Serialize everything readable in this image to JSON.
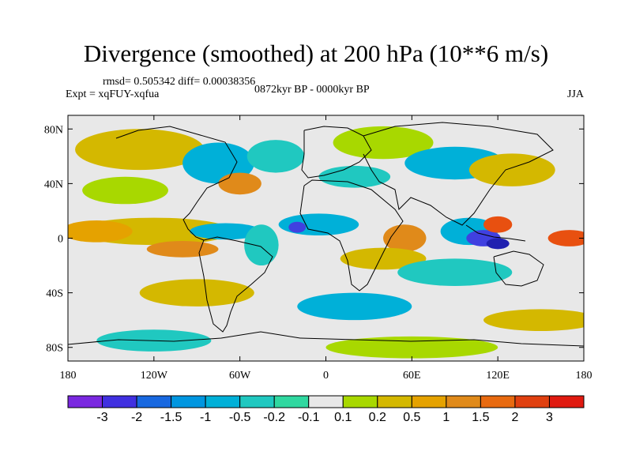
{
  "title": "Divergence (smoothed) at 200 hPa (10**6 m/s)",
  "stats": "rmsd= 0.505342 diff= 0.00038356",
  "experiment": "Expt = xqFUY-xqfua",
  "period": "0872kyr BP - 0000kyr BP",
  "season": "JJA",
  "map": {
    "lon_range": [
      -180,
      180
    ],
    "lat_range": [
      -90,
      90
    ],
    "x_ticks": [
      {
        "value": -180,
        "label": "180"
      },
      {
        "value": -120,
        "label": "120W"
      },
      {
        "value": -60,
        "label": "60W"
      },
      {
        "value": 0,
        "label": "0"
      },
      {
        "value": 60,
        "label": "60E"
      },
      {
        "value": 120,
        "label": "120E"
      },
      {
        "value": 180,
        "label": "180"
      }
    ],
    "y_ticks": [
      {
        "value": 80,
        "label": "80N"
      },
      {
        "value": 40,
        "label": "40N"
      },
      {
        "value": 0,
        "label": "0"
      },
      {
        "value": -40,
        "label": "40S"
      },
      {
        "value": -80,
        "label": "80S"
      }
    ],
    "neutral_color": "#e8e8e8",
    "regions": [
      {
        "lon": -120,
        "lat": 5,
        "rx": 55,
        "ry": 10,
        "color": "#d4b800"
      },
      {
        "lon": -160,
        "lat": 5,
        "rx": 25,
        "ry": 8,
        "color": "#e5a200"
      },
      {
        "lon": -100,
        "lat": -8,
        "rx": 25,
        "ry": 6,
        "color": "#e08a1a"
      },
      {
        "lon": -70,
        "lat": 5,
        "rx": 25,
        "ry": 6,
        "color": "#00b0d8"
      },
      {
        "lon": -45,
        "lat": -5,
        "rx": 12,
        "ry": 15,
        "color": "#20c8c0"
      },
      {
        "lon": -130,
        "lat": 65,
        "rx": 45,
        "ry": 15,
        "color": "#d4b800"
      },
      {
        "lon": -75,
        "lat": 55,
        "rx": 25,
        "ry": 15,
        "color": "#00b0d8"
      },
      {
        "lon": -60,
        "lat": 40,
        "rx": 15,
        "ry": 8,
        "color": "#e08a1a"
      },
      {
        "lon": -35,
        "lat": 60,
        "rx": 20,
        "ry": 12,
        "color": "#20c8c0"
      },
      {
        "lon": -140,
        "lat": 35,
        "rx": 30,
        "ry": 10,
        "color": "#a8d800"
      },
      {
        "lon": 40,
        "lat": 70,
        "rx": 35,
        "ry": 12,
        "color": "#a8d800"
      },
      {
        "lon": 90,
        "lat": 55,
        "rx": 35,
        "ry": 12,
        "color": "#00b0d8"
      },
      {
        "lon": 130,
        "lat": 50,
        "rx": 30,
        "ry": 12,
        "color": "#d4b800"
      },
      {
        "lon": 20,
        "lat": 45,
        "rx": 25,
        "ry": 8,
        "color": "#20c8c0"
      },
      {
        "lon": -5,
        "lat": 10,
        "rx": 28,
        "ry": 8,
        "color": "#00b0d8"
      },
      {
        "lon": -20,
        "lat": 8,
        "rx": 6,
        "ry": 4,
        "color": "#4040e0"
      },
      {
        "lon": 55,
        "lat": 0,
        "rx": 15,
        "ry": 10,
        "color": "#e08a1a"
      },
      {
        "lon": 100,
        "lat": 5,
        "rx": 20,
        "ry": 10,
        "color": "#00b0d8"
      },
      {
        "lon": 110,
        "lat": 0,
        "rx": 12,
        "ry": 6,
        "color": "#4040e0"
      },
      {
        "lon": 120,
        "lat": -4,
        "rx": 8,
        "ry": 4,
        "color": "#2020b0"
      },
      {
        "lon": 120,
        "lat": 10,
        "rx": 10,
        "ry": 6,
        "color": "#e85010"
      },
      {
        "lon": 170,
        "lat": 0,
        "rx": 15,
        "ry": 6,
        "color": "#e85010"
      },
      {
        "lon": 40,
        "lat": -15,
        "rx": 30,
        "ry": 8,
        "color": "#d4b800"
      },
      {
        "lon": 90,
        "lat": -25,
        "rx": 40,
        "ry": 10,
        "color": "#20c8c0"
      },
      {
        "lon": 20,
        "lat": -50,
        "rx": 40,
        "ry": 10,
        "color": "#00b0d8"
      },
      {
        "lon": -90,
        "lat": -40,
        "rx": 40,
        "ry": 10,
        "color": "#d4b800"
      },
      {
        "lon": 150,
        "lat": -60,
        "rx": 40,
        "ry": 8,
        "color": "#d4b800"
      },
      {
        "lon": -120,
        "lat": -75,
        "rx": 40,
        "ry": 8,
        "color": "#20c8c0"
      },
      {
        "lon": 60,
        "lat": -80,
        "rx": 60,
        "ry": 8,
        "color": "#a8d800"
      }
    ]
  },
  "colorbar": {
    "colors": [
      "#7a28e0",
      "#4030e0",
      "#1868e0",
      "#0096e0",
      "#00b0d8",
      "#20c8c0",
      "#30d8a0",
      "#e8e8e8",
      "#a8d800",
      "#d4b800",
      "#e5a200",
      "#e08a1a",
      "#e86a10",
      "#e04010",
      "#e01a10"
    ],
    "labels": [
      "-3",
      "-2",
      "-1.5",
      "-1",
      "-0.5",
      "-0.2",
      "-0.1",
      "0.1",
      "0.2",
      "0.5",
      "1",
      "1.5",
      "2",
      "3"
    ]
  }
}
